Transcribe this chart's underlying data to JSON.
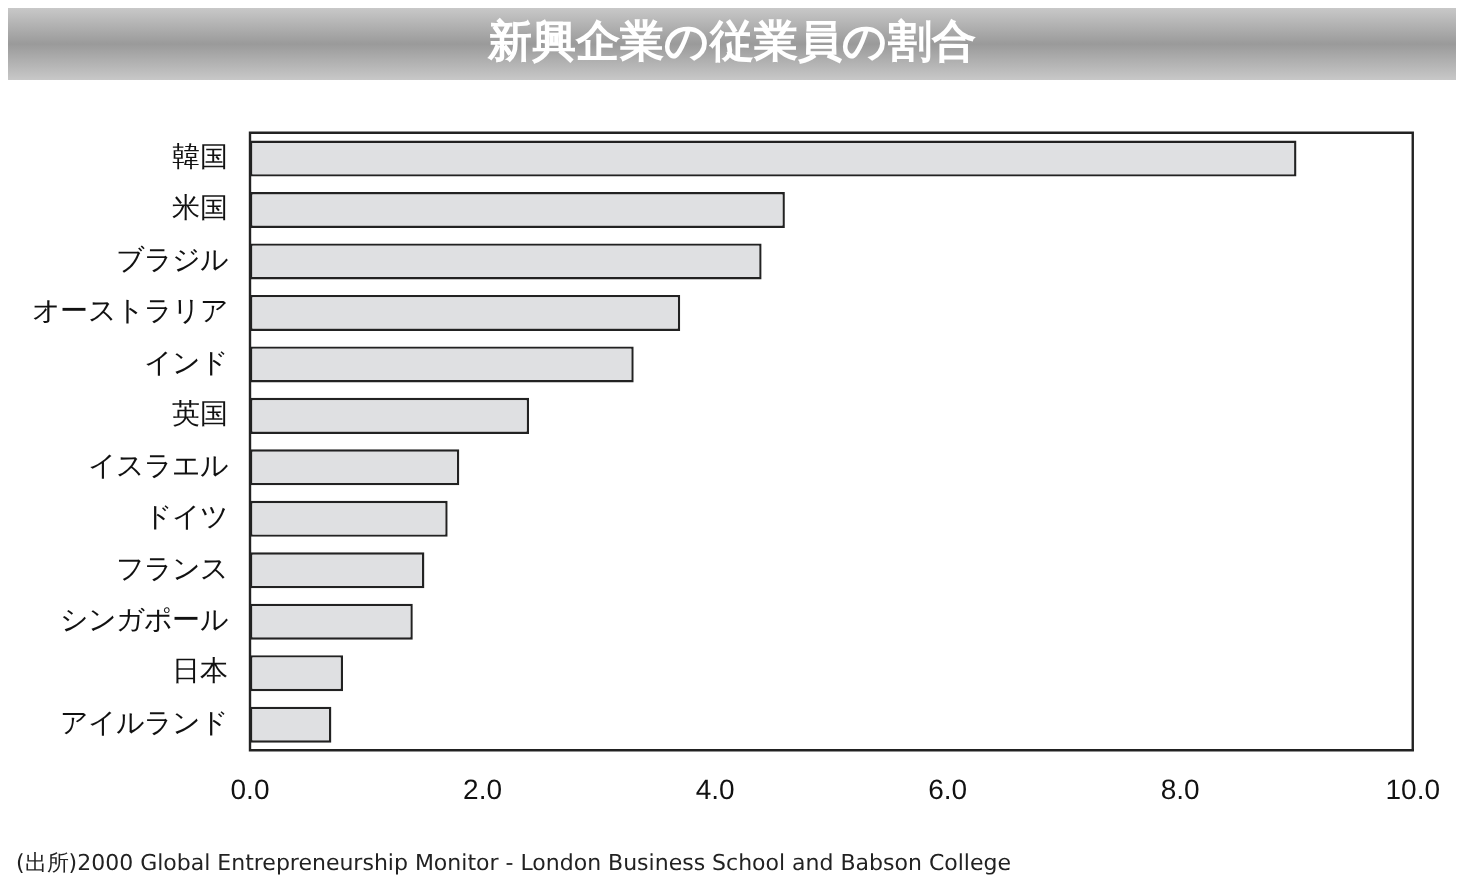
{
  "chart_data": {
    "type": "bar",
    "orientation": "horizontal",
    "title": "新興企業の従業員の割合",
    "categories": [
      "韓国",
      "米国",
      "ブラジル",
      "オーストラリア",
      "インド",
      "英国",
      "イスラエル",
      "ドイツ",
      "フランス",
      "シンガポール",
      "日本",
      "アイルランド"
    ],
    "values": [
      9.0,
      4.6,
      4.4,
      3.7,
      3.3,
      2.4,
      1.8,
      1.7,
      1.5,
      1.4,
      0.8,
      0.7
    ],
    "color": "#dfe0e2",
    "xlim": [
      0,
      10
    ],
    "xticks": [
      {
        "value": 0,
        "label": "0.0"
      },
      {
        "value": 2,
        "label": "2.0"
      },
      {
        "value": 4,
        "label": "4.0"
      },
      {
        "value": 6,
        "label": "6.0"
      },
      {
        "value": 8,
        "label": "8.0"
      },
      {
        "value": 10,
        "label": "10.0"
      }
    ],
    "grid": false,
    "annotations": [
      "(出所)2000 Global Entrepreneurship Monitor - London Business School and Babson College"
    ]
  }
}
